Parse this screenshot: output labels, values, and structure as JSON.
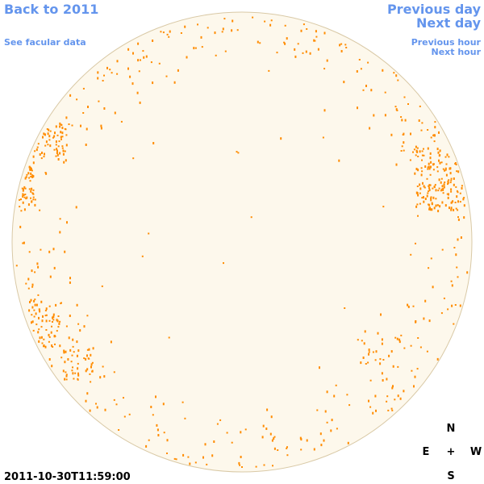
{
  "header": {
    "back_link": "Back to 2011",
    "facular_link": "See facular data"
  },
  "navigation": {
    "previous_day": "Previous day",
    "next_day": "Next day",
    "previous_hour": "Previous hour",
    "next_hour": "Next hour"
  },
  "timestamp": "2011-10-30T11:59:00",
  "compass": {
    "north": "N",
    "east": "E",
    "center": "+",
    "west": "W",
    "south": "S"
  }
}
